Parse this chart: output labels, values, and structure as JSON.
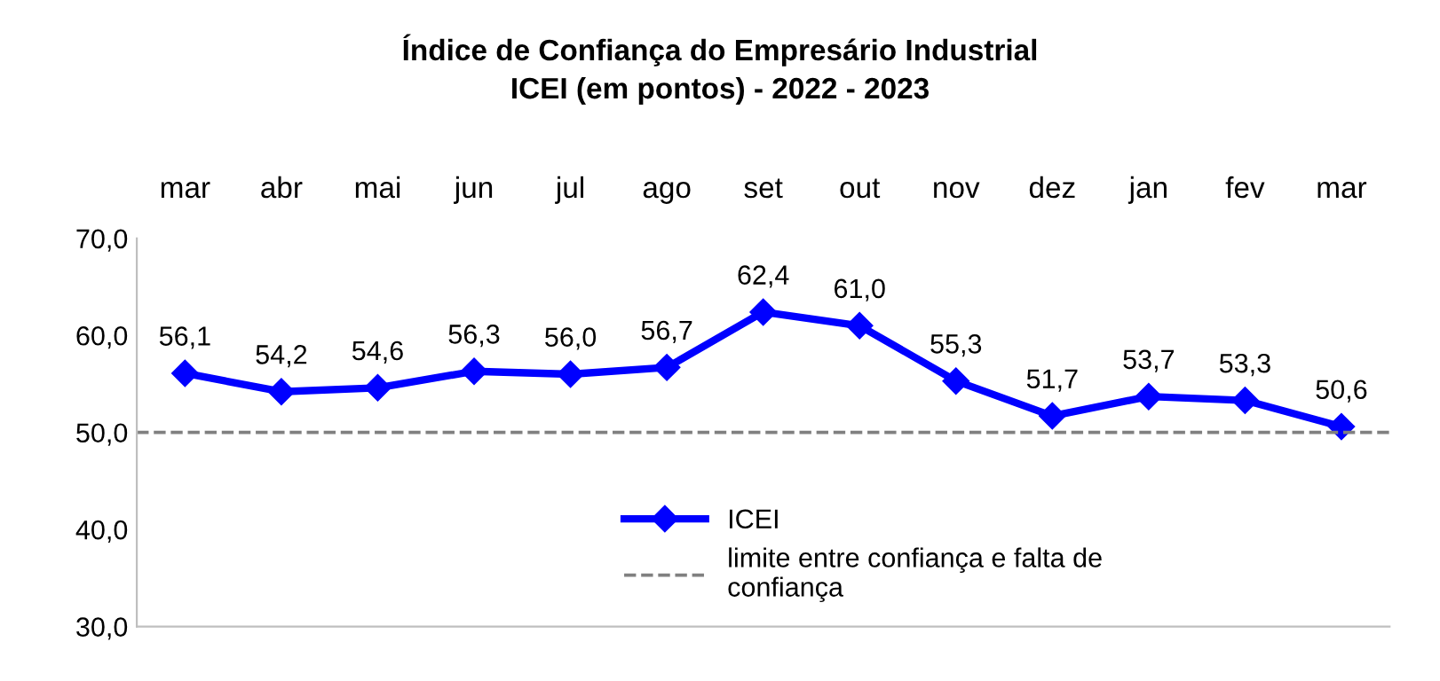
{
  "chart_data": {
    "type": "line",
    "title": "Índice de Confiança do Empresário Industrial\nICEI (em pontos) - 2022 - 2023",
    "categories": [
      "mar",
      "abr",
      "mai",
      "jun",
      "jul",
      "ago",
      "set",
      "out",
      "nov",
      "dez",
      "jan",
      "fev",
      "mar"
    ],
    "series": [
      {
        "name": "ICEI",
        "color": "#0000ff",
        "values": [
          56.1,
          54.2,
          54.6,
          56.3,
          56.0,
          56.7,
          62.4,
          61.0,
          55.3,
          51.7,
          53.7,
          53.3,
          50.6
        ],
        "value_labels": [
          "56,1",
          "54,2",
          "54,6",
          "56,3",
          "56,0",
          "56,7",
          "62,4",
          "61,0",
          "55,3",
          "51,7",
          "53,7",
          "53,3",
          "50,6"
        ]
      }
    ],
    "marker": "diamond",
    "line_style": "solid",
    "ylim": [
      30,
      70
    ],
    "yticks": [
      {
        "value": 30,
        "label": "30,0"
      },
      {
        "value": 40,
        "label": "40,0"
      },
      {
        "value": 50,
        "label": "50,0"
      },
      {
        "value": 60,
        "label": "60,0"
      },
      {
        "value": 70,
        "label": "70,0"
      }
    ],
    "ref_lines": [
      {
        "axis": "y",
        "value": 50,
        "label": "limite entre confiança e falta de\nconfiança",
        "color": "#808080",
        "line_style": "dashed"
      }
    ],
    "grid": false,
    "legend": "bottom"
  }
}
